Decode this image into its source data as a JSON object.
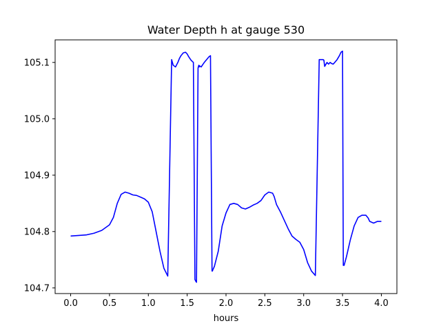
{
  "chart_data": {
    "type": "line",
    "title": "Water Depth h at gauge 530",
    "xlabel": "hours",
    "ylabel": "",
    "xlim": [
      -0.2,
      4.2
    ],
    "ylim": [
      104.69,
      105.14
    ],
    "x_ticks": [
      0.0,
      0.5,
      1.0,
      1.5,
      2.0,
      2.5,
      3.0,
      3.5,
      4.0
    ],
    "x_tick_labels": [
      "0.0",
      "0.5",
      "1.0",
      "1.5",
      "2.0",
      "2.5",
      "3.0",
      "3.5",
      "4.0"
    ],
    "y_ticks": [
      104.7,
      104.8,
      104.9,
      105.0,
      105.1
    ],
    "y_tick_labels": [
      "104.7",
      "104.8",
      "104.9",
      "105.0",
      "105.1"
    ],
    "grid": false,
    "legend": "none",
    "series": [
      {
        "color": "#0000ff",
        "x": [
          0.0,
          0.2,
          0.3,
          0.4,
          0.5,
          0.55,
          0.6,
          0.65,
          0.7,
          0.75,
          0.8,
          0.85,
          0.9,
          0.95,
          1.0,
          1.05,
          1.1,
          1.15,
          1.2,
          1.25,
          1.3,
          1.31,
          1.32,
          1.35,
          1.38,
          1.4,
          1.42,
          1.45,
          1.48,
          1.5,
          1.52,
          1.55,
          1.58,
          1.6,
          1.61,
          1.62,
          1.64,
          1.65,
          1.655,
          1.66,
          1.68,
          1.7,
          1.72,
          1.75,
          1.78,
          1.8,
          1.82,
          1.825,
          1.83,
          1.85,
          1.9,
          1.95,
          2.0,
          2.05,
          2.1,
          2.15,
          2.2,
          2.25,
          2.3,
          2.35,
          2.4,
          2.45,
          2.5,
          2.55,
          2.6,
          2.62,
          2.65,
          2.7,
          2.75,
          2.8,
          2.85,
          2.9,
          2.95,
          3.0,
          3.05,
          3.1,
          3.15,
          3.2,
          3.25,
          3.26,
          3.27,
          3.3,
          3.32,
          3.34,
          3.36,
          3.38,
          3.4,
          3.43,
          3.46,
          3.48,
          3.5,
          3.51,
          3.52,
          3.55,
          3.6,
          3.65,
          3.7,
          3.75,
          3.8,
          3.83,
          3.85,
          3.9,
          3.95,
          3.98,
          4.0
        ],
        "y": [
          104.792,
          104.794,
          104.797,
          104.802,
          104.812,
          104.825,
          104.85,
          104.866,
          104.87,
          104.868,
          104.865,
          104.864,
          104.861,
          104.858,
          104.852,
          104.835,
          104.8,
          104.765,
          104.735,
          104.721,
          105.105,
          105.1,
          105.095,
          105.092,
          105.1,
          105.107,
          105.112,
          105.117,
          105.118,
          105.115,
          105.11,
          105.104,
          105.1,
          104.715,
          104.712,
          104.71,
          105.09,
          105.095,
          105.092,
          105.094,
          105.092,
          105.096,
          105.1,
          105.105,
          105.11,
          105.112,
          104.73,
          104.73,
          104.732,
          104.738,
          104.765,
          104.81,
          104.833,
          104.848,
          104.85,
          104.848,
          104.842,
          104.84,
          104.843,
          104.847,
          104.85,
          104.855,
          104.865,
          104.87,
          104.868,
          104.862,
          104.848,
          104.835,
          104.82,
          104.805,
          104.792,
          104.786,
          104.781,
          104.768,
          104.745,
          104.73,
          104.722,
          105.105,
          105.105,
          105.104,
          105.093,
          105.1,
          105.097,
          105.1,
          105.098,
          105.097,
          105.1,
          105.105,
          105.112,
          105.118,
          105.12,
          104.74,
          104.74,
          104.755,
          104.785,
          104.81,
          104.825,
          104.829,
          104.829,
          104.824,
          104.818,
          104.815,
          104.818,
          104.818,
          104.818
        ]
      }
    ]
  }
}
